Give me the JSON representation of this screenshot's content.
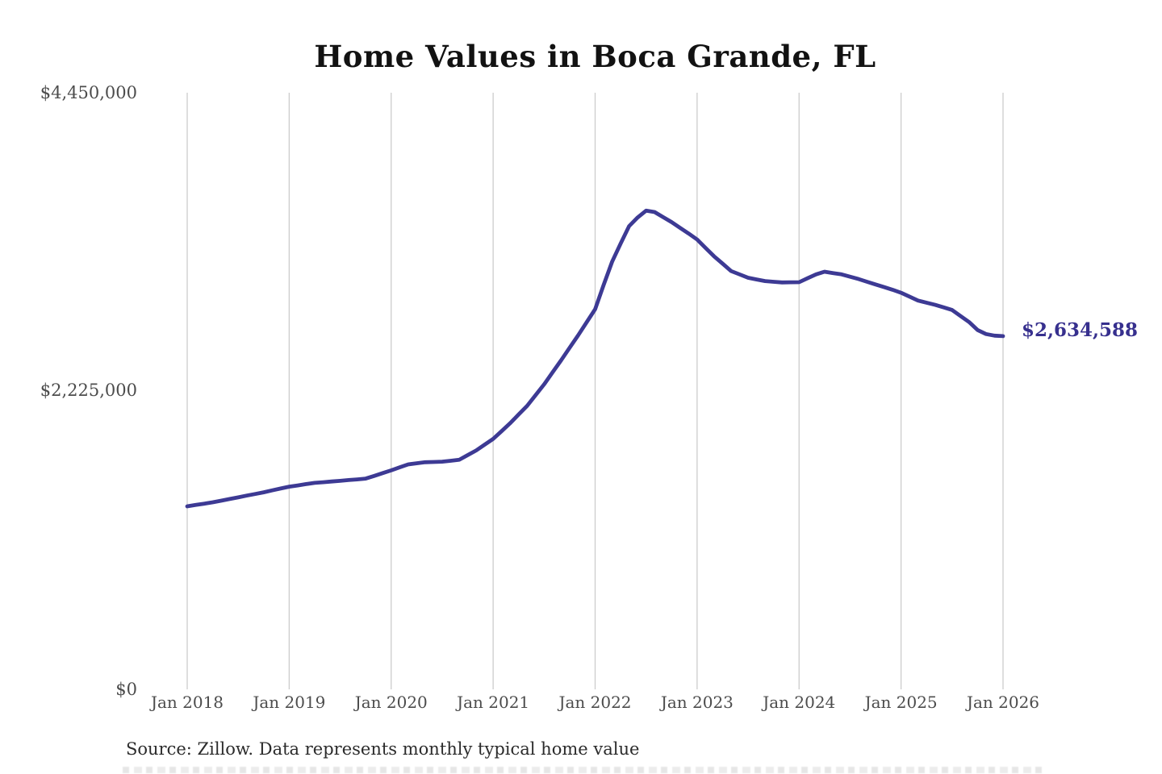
{
  "page": {
    "background": "#ffffff"
  },
  "chart_data": {
    "type": "line",
    "title": "Home Values in Boca Grande, FL",
    "caption": "Source: Zillow. Data represents monthly typical home value",
    "end_label": "$2,634,588",
    "current_value": 2634588,
    "x_unit": "month",
    "x_start": "2018-01",
    "x_end": "2026-01",
    "x_tick_labels": [
      "Jan 2018",
      "Jan 2019",
      "Jan 2020",
      "Jan 2021",
      "Jan 2022",
      "Jan 2023",
      "Jan 2024",
      "Jan 2025",
      "Jan 2026"
    ],
    "y_tick_labels": [
      "$4,450,000",
      "$2,225,000",
      "$0"
    ],
    "y_tick_values": [
      4450000,
      2225000,
      0
    ],
    "ylim": [
      0,
      4450000
    ],
    "grid": "vertical-only",
    "legend": "none",
    "colors": {
      "line": "#3d3a94",
      "grid": "#cccccc",
      "tick_label": "#4c4c4c",
      "end_label": "#37308e",
      "title": "#121212",
      "caption": "#2b2b2b"
    },
    "values": [
      1365000,
      1375000,
      1385000,
      1395000,
      1407000,
      1420000,
      1432000,
      1445000,
      1457000,
      1470000,
      1484000,
      1498000,
      1512000,
      1521000,
      1531000,
      1540000,
      1545000,
      1550000,
      1555000,
      1561000,
      1566000,
      1572000,
      1592000,
      1613000,
      1633000,
      1656000,
      1678000,
      1686000,
      1694000,
      1696000,
      1698000,
      1705000,
      1712000,
      1747000,
      1782000,
      1825000,
      1868000,
      1926000,
      1985000,
      2050000,
      2115000,
      2195000,
      2275000,
      2365000,
      2455000,
      2548000,
      2640000,
      2738000,
      2835000,
      3015000,
      3190000,
      3325000,
      3455000,
      3520000,
      3570000,
      3560000,
      3522000,
      3485000,
      3442000,
      3400000,
      3355000,
      3292000,
      3230000,
      3175000,
      3120000,
      3095000,
      3070000,
      3057000,
      3045000,
      3040000,
      3035000,
      3036000,
      3037000,
      3066000,
      3095000,
      3115000,
      3105000,
      3095000,
      3078000,
      3060000,
      3040000,
      3020000,
      3000000,
      2980000,
      2958000,
      2929000,
      2900000,
      2884000,
      2868000,
      2849000,
      2830000,
      2785000,
      2740000,
      2680000,
      2650000,
      2638000,
      2634588
    ]
  }
}
